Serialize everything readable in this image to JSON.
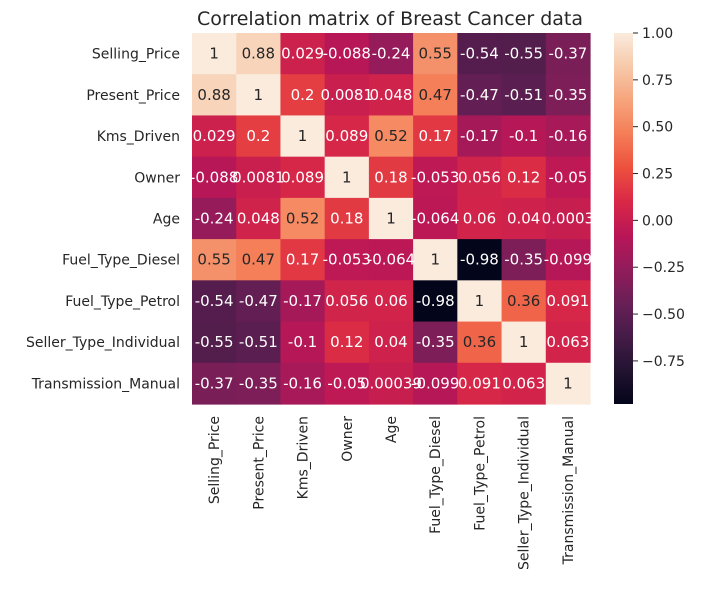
{
  "chart_data": {
    "type": "heatmap",
    "title": "Correlation matrix of Breast Cancer data",
    "rows": [
      "Selling_Price",
      "Present_Price",
      "Kms_Driven",
      "Owner",
      "Age",
      "Fuel_Type_Diesel",
      "Fuel_Type_Petrol",
      "Seller_Type_Individual",
      "Transmission_Manual"
    ],
    "columns": [
      "Selling_Price",
      "Present_Price",
      "Kms_Driven",
      "Owner",
      "Age",
      "Fuel_Type_Diesel",
      "Fuel_Type_Petrol",
      "Seller_Type_Individual",
      "Transmission_Manual"
    ],
    "values": [
      [
        1,
        0.88,
        0.029,
        -0.088,
        -0.24,
        0.55,
        -0.54,
        -0.55,
        -0.37
      ],
      [
        0.88,
        1,
        0.2,
        0.0081,
        0.048,
        0.47,
        -0.47,
        -0.51,
        -0.35
      ],
      [
        0.029,
        0.2,
        1,
        0.089,
        0.52,
        0.17,
        -0.17,
        -0.1,
        -0.16
      ],
      [
        -0.088,
        0.0081,
        0.089,
        1,
        0.18,
        -0.053,
        0.056,
        0.12,
        -0.05
      ],
      [
        -0.24,
        0.048,
        0.52,
        0.18,
        1,
        -0.064,
        0.06,
        0.04,
        0.0003
      ],
      [
        0.55,
        0.47,
        0.17,
        -0.053,
        -0.064,
        1,
        -0.98,
        -0.35,
        -0.099
      ],
      [
        -0.54,
        -0.47,
        -0.17,
        0.056,
        0.06,
        -0.98,
        1,
        0.36,
        0.091
      ],
      [
        -0.55,
        -0.51,
        -0.1,
        0.12,
        0.04,
        -0.35,
        0.36,
        1,
        0.063
      ],
      [
        -0.37,
        -0.35,
        -0.16,
        -0.05,
        0.00039,
        -0.099,
        0.091,
        0.063,
        1
      ]
    ],
    "labels": [
      [
        "1",
        "0.88",
        "0.029",
        "-0.088",
        "-0.24",
        "0.55",
        "-0.54",
        "-0.55",
        "-0.37"
      ],
      [
        "0.88",
        "1",
        "0.2",
        "0.0081",
        "0.048",
        "0.47",
        "-0.47",
        "-0.51",
        "-0.35"
      ],
      [
        "0.029",
        "0.2",
        "1",
        "0.089",
        "0.52",
        "0.17",
        "-0.17",
        "-0.1",
        "-0.16"
      ],
      [
        "-0.088",
        "0.0081",
        "0.089",
        "1",
        "0.18",
        "-0.053",
        "0.056",
        "0.12",
        "-0.05"
      ],
      [
        "-0.24",
        "0.048",
        "0.52",
        "0.18",
        "1",
        "-0.064",
        "0.06",
        "0.04",
        "0.0003"
      ],
      [
        "0.55",
        "0.47",
        "0.17",
        "-0.053",
        "-0.064",
        "1",
        "-0.98",
        "-0.35",
        "-0.099"
      ],
      [
        "-0.54",
        "-0.47",
        "-0.17",
        "0.056",
        "0.06",
        "-0.98",
        "1",
        "0.36",
        "0.091"
      ],
      [
        "-0.55",
        "-0.51",
        "-0.1",
        "0.12",
        "0.04",
        "-0.35",
        "0.36",
        "1",
        "0.063"
      ],
      [
        "-0.37",
        "-0.35",
        "-0.16",
        "-0.05",
        "0.00039",
        "-0.099",
        "0.091",
        "0.063",
        "1"
      ]
    ],
    "colorbar": {
      "range": [
        -0.98,
        1.0
      ],
      "ticks": [
        1.0,
        0.75,
        0.5,
        0.25,
        0.0,
        -0.25,
        -0.5,
        -0.75
      ],
      "tick_labels": [
        "1.00",
        "0.75",
        "0.50",
        "0.25",
        "0.00",
        "−0.25",
        "−0.50",
        "−0.75"
      ]
    },
    "colormap": "rocket",
    "colormap_stops": [
      "#03051a",
      "#221331",
      "#451c47",
      "#691f55",
      "#921c5b",
      "#b91657",
      "#d92847",
      "#ed503e",
      "#f47d57",
      "#f6a47c",
      "#f7c9aa",
      "#faebdd"
    ],
    "grid": false
  }
}
